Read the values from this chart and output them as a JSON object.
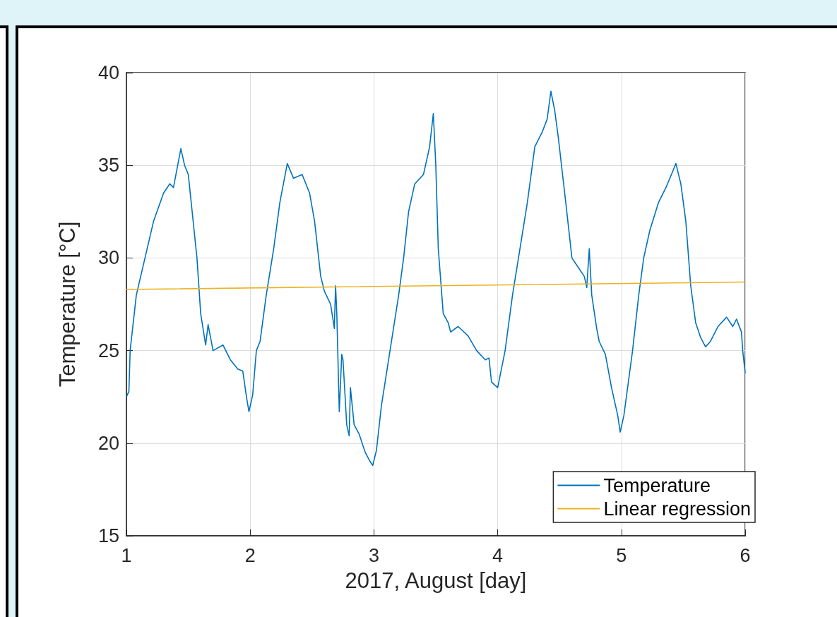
{
  "chart_data": {
    "type": "line",
    "xlabel": "2017, August [day]",
    "ylabel": "Temperature [°C]",
    "xlim": [
      1,
      6
    ],
    "xticks": [
      1,
      2,
      3,
      4,
      5,
      6
    ],
    "ylim": [
      15,
      40
    ],
    "yticks": [
      15,
      20,
      25,
      30,
      35,
      40
    ],
    "grid": true,
    "legend": "bottom right",
    "marker": "none",
    "line_style": "solid",
    "series": [
      {
        "name": "Temperature",
        "color": "#0072bd",
        "x": [
          1.0,
          1.02,
          1.03,
          1.08,
          1.15,
          1.22,
          1.3,
          1.35,
          1.38,
          1.44,
          1.47,
          1.5,
          1.57,
          1.6,
          1.64,
          1.66,
          1.7,
          1.78,
          1.84,
          1.9,
          1.94,
          1.97,
          1.99,
          2.02,
          2.05,
          2.08,
          2.13,
          2.19,
          2.24,
          2.3,
          2.35,
          2.42,
          2.48,
          2.52,
          2.57,
          2.6,
          2.65,
          2.68,
          2.69,
          2.7,
          2.72,
          2.74,
          2.75,
          2.78,
          2.8,
          2.81,
          2.84,
          2.88,
          2.93,
          2.97,
          2.99,
          3.02,
          3.06,
          3.13,
          3.2,
          3.24,
          3.28,
          3.33,
          3.4,
          3.45,
          3.48,
          3.5,
          3.52,
          3.56,
          3.6,
          3.62,
          3.68,
          3.76,
          3.83,
          3.9,
          3.93,
          3.95,
          4.0,
          4.06,
          4.12,
          4.18,
          4.24,
          4.3,
          4.36,
          4.4,
          4.43,
          4.46,
          4.49,
          4.55,
          4.6,
          4.65,
          4.7,
          4.72,
          4.74,
          4.76,
          4.8,
          4.82,
          4.87,
          4.92,
          4.97,
          4.99,
          5.02,
          5.09,
          5.14,
          5.18,
          5.23,
          5.3,
          5.36,
          5.41,
          5.44,
          5.48,
          5.52,
          5.56,
          5.6,
          5.64,
          5.68,
          5.72,
          5.78,
          5.85,
          5.9,
          5.93,
          5.97,
          5.98,
          6.0
        ],
        "values": [
          22.5,
          22.8,
          25,
          28,
          30,
          32,
          33.5,
          34,
          33.8,
          35.9,
          35,
          34.5,
          30,
          27,
          25.3,
          26.4,
          25,
          25.3,
          24.5,
          24,
          23.9,
          22.5,
          21.7,
          22.6,
          25,
          25.5,
          28,
          30.5,
          33,
          35.1,
          34.3,
          34.5,
          33.5,
          32,
          29,
          28.2,
          27.5,
          26.2,
          28.5,
          27,
          21.7,
          24.8,
          24.5,
          21,
          20.4,
          23,
          21,
          20.5,
          19.5,
          19.0,
          18.8,
          19.6,
          22,
          25,
          28,
          30,
          32.5,
          34,
          34.5,
          36,
          37.8,
          35,
          30.5,
          27,
          26.5,
          26,
          26.3,
          25.8,
          25,
          24.5,
          24.6,
          23.3,
          23,
          25,
          28,
          30.5,
          33,
          36,
          36.8,
          37.5,
          39,
          38,
          36.5,
          33,
          30,
          29.5,
          29,
          28.4,
          30.5,
          28,
          26.2,
          25.5,
          24.8,
          23,
          21.5,
          20.6,
          21.5,
          25,
          28,
          30,
          31.5,
          33,
          33.8,
          34.6,
          35.1,
          34,
          32,
          28.5,
          26.5,
          25.7,
          25.2,
          25.5,
          26.3,
          26.8,
          26.3,
          26.7,
          26,
          25,
          23.8
        ]
      },
      {
        "name": "Linear regression",
        "color": "#edb120",
        "x": [
          1,
          6
        ],
        "values": [
          28.3,
          28.7
        ]
      }
    ]
  }
}
